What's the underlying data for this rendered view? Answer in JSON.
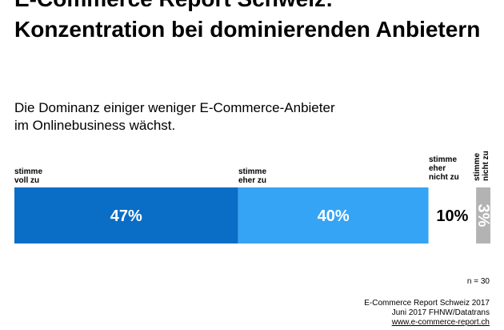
{
  "title": [
    "E-Commerce Report Schweiz:",
    "Konzentration bei dominierenden Anbietern"
  ],
  "subtitle": [
    "Die Dominanz einiger weniger E-Commerce-Anbieter",
    "im Onlinebusiness wächst."
  ],
  "chart_data": {
    "type": "bar",
    "orientation": "horizontal-stacked",
    "categories": [
      "stimme voll zu",
      "stimme eher zu",
      "stimme eher nicht zu",
      "stimme nicht zu"
    ],
    "category_lines": [
      [
        "stimme",
        "voll zu"
      ],
      [
        "stimme",
        "eher zu"
      ],
      [
        "stimme",
        "eher",
        "nicht zu"
      ],
      [
        "stimme",
        "nicht zu"
      ]
    ],
    "values": [
      47,
      40,
      10,
      3
    ],
    "value_labels": [
      "47%",
      "40%",
      "10%",
      "3%"
    ],
    "colors": [
      "#0a6dc6",
      "#35a4f5",
      "#ffffff",
      "#b3b3b3"
    ],
    "label_colors": [
      "#ffffff",
      "#ffffff",
      "#000000",
      "#ffffff"
    ],
    "title": "Die Dominanz einiger weniger E-Commerce-Anbieter im Onlinebusiness wächst.",
    "xlim": [
      0,
      100
    ]
  },
  "footer": {
    "n": "n = 30",
    "source_line1": "E-Commerce Report Schweiz 2017",
    "source_line2": "Juni 2017 FHNW/Datatrans",
    "source_url": "www.e-commerce-report.ch"
  }
}
